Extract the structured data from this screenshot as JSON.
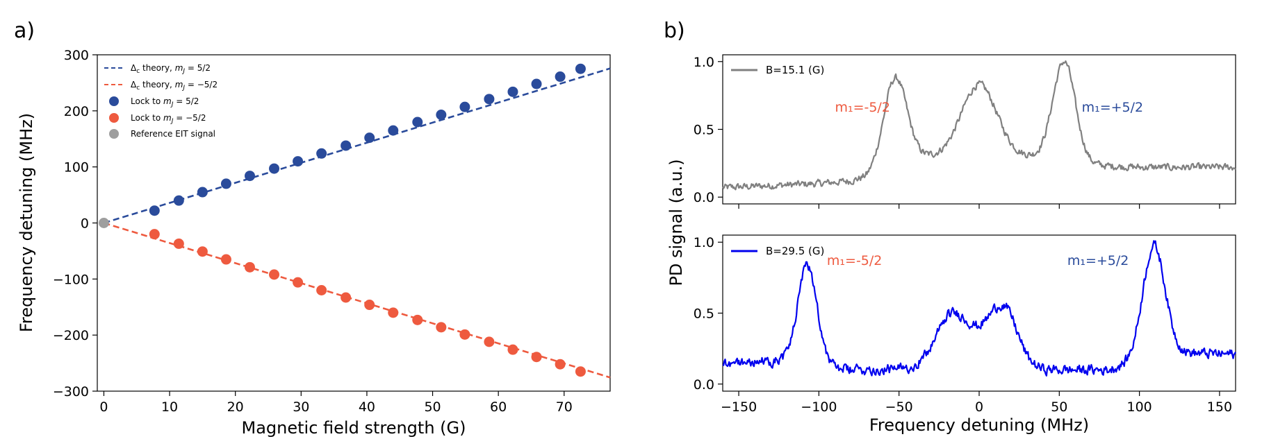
{
  "panels": {
    "a": "a)",
    "b": "b)"
  },
  "chart_data": [
    {
      "type": "scatter",
      "panel": "a)",
      "xlabel": "Magnetic field strength (G)",
      "ylabel": "Frequency detuning (MHz)",
      "xlim": [
        -1,
        77
      ],
      "ylim": [
        -300,
        300
      ],
      "xticks": [
        "0",
        "10",
        "20",
        "30",
        "40",
        "50",
        "60",
        "70"
      ],
      "yticks": [
        "300",
        "200",
        "100",
        "0",
        "−100",
        "−200",
        "−300"
      ],
      "legend_position": "top-left",
      "colors": {
        "plus": "#2a4b9b",
        "minus": "#ee5a3f",
        "ref": "#9e9e9e"
      },
      "series": [
        {
          "name": "Δc theory, mJ = 5/2",
          "label_pre": "Δ",
          "label_sub": "c",
          "label_mid": " theory, ",
          "label_var": "m",
          "label_varsub": "J",
          "label_post": " = 5/2",
          "kind": "line",
          "style": "dashed",
          "slope": 3.58,
          "color": "#2a4b9b"
        },
        {
          "name": "Δc theory, mJ = −5/2",
          "label_pre": "Δ",
          "label_sub": "c",
          "label_mid": " theory, ",
          "label_var": "m",
          "label_varsub": "J",
          "label_post": " = −5/2",
          "kind": "line",
          "style": "dashed",
          "slope": -3.58,
          "color": "#ee5a3f"
        },
        {
          "name": "Lock to mJ = 5/2",
          "label_pre": "Lock to ",
          "label_var": "m",
          "label_varsub": "J",
          "label_post": " = 5/2",
          "kind": "scatter",
          "color": "#2a4b9b",
          "x": [
            7.7,
            11.4,
            15.0,
            18.6,
            22.2,
            25.9,
            29.5,
            33.1,
            36.8,
            40.4,
            44.0,
            47.7,
            51.3,
            54.9,
            58.6,
            62.2,
            65.8,
            69.4,
            72.5
          ],
          "y": [
            22,
            40,
            55,
            70,
            84,
            97,
            110,
            124,
            138,
            152,
            165,
            180,
            193,
            207,
            221,
            234,
            248,
            261,
            275
          ]
        },
        {
          "name": "Lock to mJ = −5/2",
          "label_pre": "Lock to ",
          "label_var": "m",
          "label_varsub": "J",
          "label_post": " = −5/2",
          "kind": "scatter",
          "color": "#ee5a3f",
          "x": [
            7.7,
            11.4,
            15.0,
            18.6,
            22.2,
            25.9,
            29.5,
            33.1,
            36.8,
            40.4,
            44.0,
            47.7,
            51.3,
            54.9,
            58.6,
            62.2,
            65.8,
            69.4,
            72.5
          ],
          "y": [
            -20,
            -37,
            -51,
            -65,
            -79,
            -92,
            -106,
            -120,
            -133,
            -146,
            -160,
            -173,
            -186,
            -199,
            -212,
            -226,
            -239,
            -252,
            -265
          ]
        },
        {
          "name": "Reference EIT signal",
          "label_pre": "Reference EIT signal",
          "kind": "scatter",
          "color": "#9e9e9e",
          "x": [
            0
          ],
          "y": [
            0
          ]
        }
      ]
    },
    {
      "type": "line",
      "panel": "b) top",
      "ylabel": "PD signal (a.u.)",
      "xlim": [
        -160,
        160
      ],
      "ylim": [
        -0.05,
        1.05
      ],
      "xticks": [
        "−150",
        "−100",
        "−50",
        "0",
        "50",
        "100",
        "150"
      ],
      "yticks": [
        "1.0",
        "0.5",
        "0.0"
      ],
      "legend_position": "top-left",
      "series": [
        {
          "name": "B=15.1 (G)",
          "color": "#808080",
          "noise": 0.022,
          "baseline": {
            "x": [
              -160,
              -140,
              -120,
              -100,
              -80,
              -70,
              -62,
              -56,
              56,
              62,
              70,
              80,
              100,
              130,
              160
            ],
            "y": [
              0.07,
              0.08,
              0.09,
              0.1,
              0.12,
              0.15,
              0.24,
              0.3,
              0.3,
              0.26,
              0.24,
              0.23,
              0.22,
              0.22,
              0.22
            ]
          },
          "peaks": [
            {
              "center": -52,
              "height": 0.58,
              "width": 7
            },
            {
              "center": 0,
              "height": 0.53,
              "width": 11
            },
            {
              "center": 53,
              "height": 0.7,
              "width": 7
            }
          ]
        }
      ],
      "annotations": [
        {
          "text": "m₁=-5/2",
          "x": -90,
          "y": 0.63,
          "color": "#ee5a3f"
        },
        {
          "text": "m₁=+5/2",
          "x": 64,
          "y": 0.63,
          "color": "#2a4b9b"
        }
      ]
    },
    {
      "type": "line",
      "panel": "b) bottom",
      "xlabel": "Frequency detuning (MHz)",
      "xlim": [
        -160,
        160
      ],
      "ylim": [
        -0.05,
        1.05
      ],
      "xticks": [
        "−150",
        "−100",
        "−50",
        "0",
        "50",
        "100",
        "150"
      ],
      "yticks": [
        "1.0",
        "0.5",
        "0.0"
      ],
      "legend_position": "top-left",
      "series": [
        {
          "name": "B=29.5 (G)",
          "color": "#0000ee",
          "noise": 0.03,
          "baseline": {
            "x": [
              -160,
              -130,
              -120,
              -95,
              -80,
              -60,
              -40,
              -30,
              -20,
              20,
              30,
              40,
              60,
              80,
              95,
              125,
              160
            ],
            "y": [
              0.15,
              0.16,
              0.17,
              0.12,
              0.1,
              0.1,
              0.11,
              0.14,
              0.22,
              0.22,
              0.13,
              0.1,
              0.1,
              0.1,
              0.14,
              0.22,
              0.21
            ]
          },
          "peaks": [
            {
              "center": -107,
              "height": 0.69,
              "width": 6
            },
            {
              "center": -16,
              "height": 0.28,
              "width": 11
            },
            {
              "center": 14,
              "height": 0.33,
              "width": 9
            },
            {
              "center": 109,
              "height": 0.8,
              "width": 7
            }
          ]
        }
      ],
      "annotations": [
        {
          "text": "m₁=-5/2",
          "x": -95,
          "y": 0.84,
          "color": "#ee5a3f"
        },
        {
          "text": "m₁=+5/2",
          "x": 55,
          "y": 0.84,
          "color": "#2a4b9b"
        }
      ]
    }
  ]
}
